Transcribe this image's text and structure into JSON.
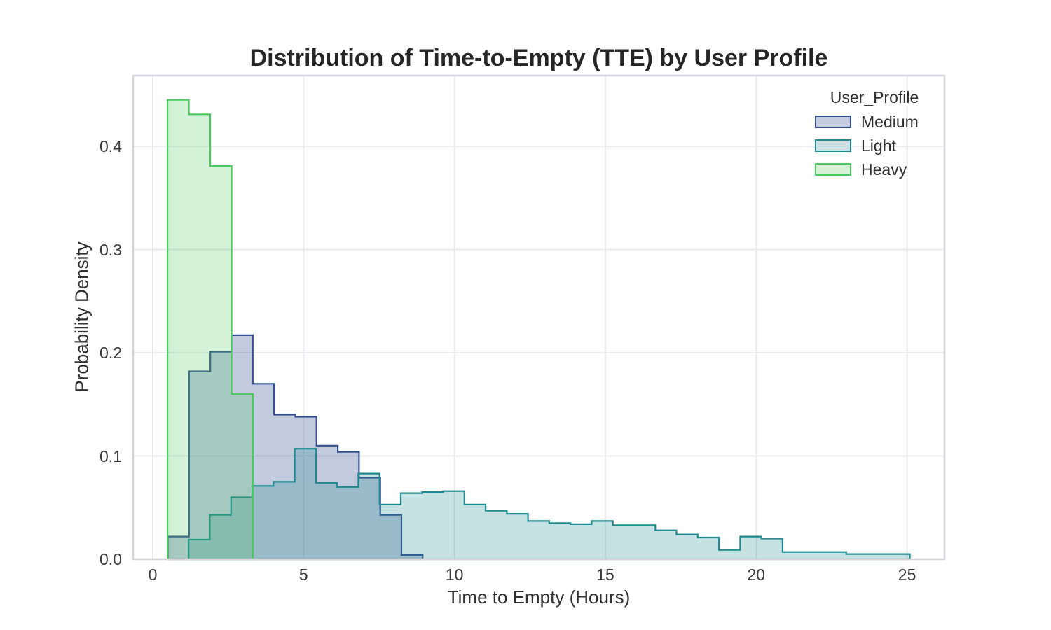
{
  "title": "Distribution of Time-to-Empty (TTE) by User Profile",
  "xlabel": "Time to Empty (Hours)",
  "ylabel": "Probability Density",
  "x_ticks": [
    0,
    5,
    10,
    15,
    20,
    25
  ],
  "y_ticks": [
    0.0,
    0.1,
    0.2,
    0.3,
    0.4
  ],
  "legend": {
    "title": "User_Profile",
    "items": [
      {
        "label": "Medium",
        "edge": "#36508f",
        "swatch_fill": "#c6cce0"
      },
      {
        "label": "Light",
        "edge": "#1f8a8f",
        "swatch_fill": "#cfe0e4"
      },
      {
        "label": "Heavy",
        "edge": "#4bc95c",
        "swatch_fill": "#d8f2d8"
      }
    ]
  },
  "colors": {
    "grid": "#eaeaef",
    "frame": "#d4d4d9",
    "medium_fill": "rgba(54,80,143,0.30)",
    "light_fill": "rgba(31,138,143,0.25)",
    "heavy_fill": "rgba(77,201,93,0.24)"
  },
  "chart_data": {
    "type": "step-histogram",
    "title": "Distribution of Time-to-Empty (TTE) by User Profile",
    "xlabel": "Time to Empty (Hours)",
    "ylabel": "Probability Density",
    "xlim": [
      -0.65,
      26.24
    ],
    "ylim": [
      0,
      0.4685
    ],
    "grid": true,
    "legend_position": "upper right",
    "series": [
      {
        "name": "Medium",
        "edge": "#36508f",
        "fill": "rgba(54,80,143,0.30)",
        "bin_start": 0.5,
        "bin_width": 0.704,
        "heights": [
          0.022,
          0.182,
          0.201,
          0.217,
          0.17,
          0.14,
          0.138,
          0.11,
          0.104,
          0.079,
          0.043,
          0.004
        ]
      },
      {
        "name": "Light",
        "edge": "#1f8a8f",
        "fill": "rgba(31,138,143,0.25)",
        "bin_start": 1.19,
        "bin_width": 0.703,
        "heights": [
          0.019,
          0.043,
          0.06,
          0.071,
          0.075,
          0.107,
          0.074,
          0.07,
          0.083,
          0.053,
          0.064,
          0.065,
          0.066,
          0.053,
          0.047,
          0.044,
          0.037,
          0.035,
          0.034,
          0.037,
          0.033,
          0.033,
          0.028,
          0.024,
          0.021,
          0.009,
          0.022,
          0.02,
          0.007,
          0.007,
          0.007,
          0.005,
          0.005,
          0.005
        ]
      },
      {
        "name": "Heavy",
        "edge": "#4bc95c",
        "fill": "rgba(77,201,93,0.24)",
        "bin_start": 0.49,
        "bin_width": 0.708,
        "heights": [
          0.445,
          0.431,
          0.381,
          0.16
        ]
      }
    ]
  }
}
